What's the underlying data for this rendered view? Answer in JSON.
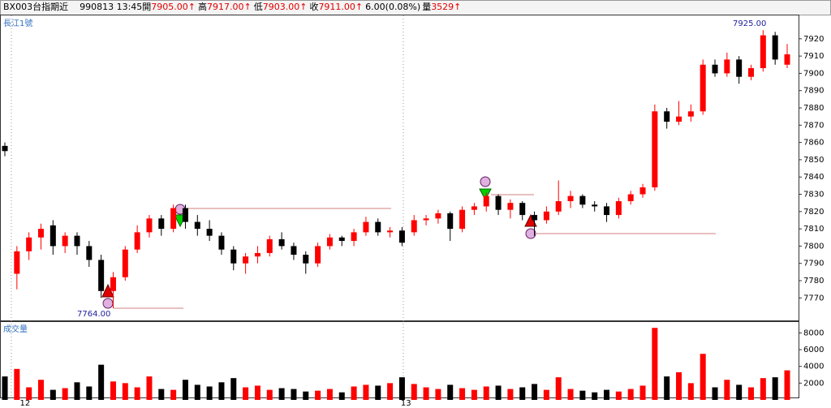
{
  "header": {
    "symbol": "BX003台指期近",
    "datetime": "990813 13:45",
    "quotes": [
      {
        "label": "開",
        "value": "7905.00↑"
      },
      {
        "label": "高",
        "value": "7917.00↑"
      },
      {
        "label": "低",
        "value": "7903.00↑"
      },
      {
        "label": "收",
        "value": "7911.00↑"
      }
    ],
    "change": "6.00(0.08%)",
    "volume_label": "量",
    "volume": "3529↑"
  },
  "chart_data": {
    "type": "candlestick",
    "title": "長江1號",
    "volume_title": "成交量",
    "up_color": "#ff0000",
    "down_color": "#000000",
    "categories": [
      null,
      "12",
      null,
      null,
      null,
      null,
      null,
      null,
      null,
      null,
      null,
      null,
      null,
      null,
      null,
      null,
      null,
      null,
      null,
      null,
      null,
      null,
      null,
      null,
      null,
      null,
      null,
      null,
      null,
      null,
      null,
      null,
      null,
      null,
      "13",
      null,
      null,
      null,
      null,
      null,
      null,
      null,
      null,
      null,
      null,
      null,
      null,
      null,
      null,
      null,
      null,
      null,
      null,
      null,
      null,
      null,
      null,
      null,
      null,
      null,
      null,
      null,
      null,
      null,
      null,
      null
    ],
    "open": [
      7858,
      7784,
      7797,
      7805,
      7812,
      7800,
      7806,
      7800,
      7792,
      7774,
      7782,
      7798,
      7808,
      7816,
      7810,
      7822,
      7814,
      7810,
      7806,
      7798,
      7790,
      7794,
      7796,
      7804,
      7800,
      7795,
      7790,
      7800,
      7805,
      7803,
      7808,
      7814,
      7808,
      7809,
      7808,
      7815,
      7816,
      7819,
      7810,
      7821,
      7823,
      7829,
      7821,
      7825,
      7818,
      7815,
      7820,
      7826,
      7829,
      7824,
      7823,
      7818,
      7826,
      7830,
      7834,
      7878,
      7872,
      7875,
      7878,
      7905,
      7900,
      7908,
      7898,
      7903,
      7922,
      7905
    ],
    "high": [
      7860,
      7800,
      7808,
      7813,
      7815,
      7808,
      7808,
      7803,
      7795,
      7785,
      7800,
      7812,
      7818,
      7818,
      7824,
      7824,
      7818,
      7815,
      7808,
      7800,
      7796,
      7800,
      7806,
      7808,
      7802,
      7797,
      7802,
      7807,
      7806,
      7810,
      7817,
      7816,
      7811,
      7811,
      7818,
      7818,
      7821,
      7820,
      7823,
      7825,
      7831,
      7830,
      7827,
      7826,
      7820,
      7823,
      7838,
      7832,
      7830,
      7826,
      7825,
      7828,
      7832,
      7836,
      7882,
      7880,
      7884,
      7882,
      7908,
      7908,
      7912,
      7910,
      7905,
      7925,
      7924,
      7917
    ],
    "low": [
      7852,
      7775,
      7792,
      7798,
      7795,
      7796,
      7795,
      7788,
      7770,
      7764,
      7780,
      7796,
      7805,
      7806,
      7808,
      7810,
      7806,
      7803,
      7795,
      7786,
      7784,
      7790,
      7794,
      7798,
      7792,
      7784,
      7788,
      7798,
      7800,
      7800,
      7806,
      7806,
      7805,
      7800,
      7806,
      7812,
      7813,
      7803,
      7808,
      7818,
      7820,
      7818,
      7816,
      7815,
      7806,
      7813,
      7818,
      7822,
      7822,
      7820,
      7814,
      7816,
      7824,
      7828,
      7832,
      7868,
      7870,
      7872,
      7876,
      7898,
      7898,
      7894,
      7896,
      7901,
      7905,
      7903
    ],
    "close": [
      7855,
      7797,
      7805,
      7810,
      7800,
      7806,
      7800,
      7792,
      7774,
      7782,
      7798,
      7808,
      7816,
      7810,
      7822,
      7814,
      7810,
      7806,
      7798,
      7790,
      7794,
      7796,
      7804,
      7800,
      7795,
      7790,
      7800,
      7805,
      7803,
      7808,
      7814,
      7808,
      7809,
      7802,
      7815,
      7816,
      7819,
      7810,
      7821,
      7823,
      7829,
      7821,
      7825,
      7818,
      7815,
      7820,
      7826,
      7829,
      7824,
      7823,
      7818,
      7826,
      7830,
      7834,
      7878,
      7872,
      7875,
      7878,
      7905,
      7900,
      7908,
      7898,
      7903,
      7922,
      7908,
      7911
    ],
    "volume": [
      2800,
      3700,
      1500,
      2400,
      1200,
      1400,
      2100,
      1600,
      4200,
      2200,
      2000,
      1500,
      2800,
      1300,
      1200,
      2400,
      1800,
      1600,
      2100,
      2600,
      1500,
      1700,
      1200,
      1400,
      1300,
      1000,
      1100,
      1300,
      900,
      1600,
      1800,
      1700,
      2000,
      2700,
      1900,
      1500,
      1300,
      1800,
      1400,
      1200,
      1600,
      1700,
      1300,
      1500,
      1900,
      1200,
      2700,
      1300,
      1100,
      900,
      1200,
      1000,
      1300,
      1700,
      8600,
      2800,
      3300,
      2000,
      5500,
      1500,
      2400,
      1800,
      1500,
      2600,
      2700,
      3529
    ],
    "ylim": [
      7757,
      7934
    ],
    "yticks": [
      7770,
      7780,
      7790,
      7800,
      7810,
      7820,
      7830,
      7840,
      7850,
      7860,
      7870,
      7880,
      7890,
      7900,
      7910,
      7920
    ],
    "vlim": [
      0,
      9300
    ],
    "vticks": [
      2000,
      4000,
      6000,
      8000
    ],
    "annotations": [
      {
        "text": "7764.00"
      },
      {
        "text": "7925.00"
      }
    ]
  }
}
